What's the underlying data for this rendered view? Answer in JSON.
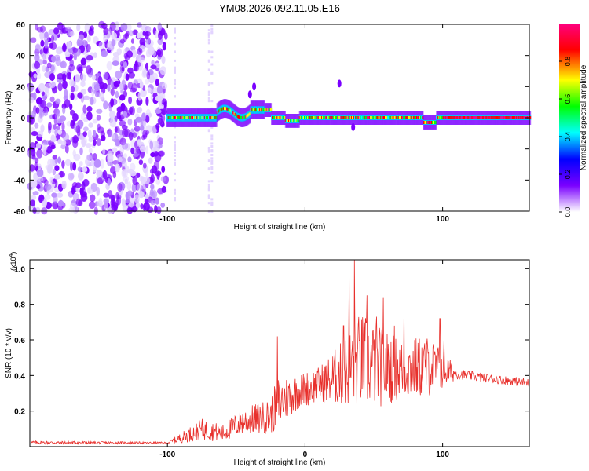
{
  "title": "YM08.2026.092.11.05.E16",
  "colors": {
    "snr_line": "#e8302c",
    "axis": "#000000",
    "colorbar_stops": [
      "#ffffff",
      "#7a00ff",
      "#0000ff",
      "#00ffff",
      "#00ff00",
      "#ffff00",
      "#ff0000",
      "#ff0080"
    ]
  },
  "chart_data": [
    {
      "type": "heatmap",
      "name": "spectrogram",
      "xlabel": "Height of straight line (km)",
      "ylabel": "Frequency (Hz)",
      "xlim": [
        -200,
        163
      ],
      "ylim": [
        -60,
        60
      ],
      "xticks": [
        -100,
        0,
        100
      ],
      "xtick_labels": [
        "-100",
        "",
        "100"
      ],
      "yticks": [
        -60,
        -40,
        -20,
        0,
        20,
        40,
        60
      ],
      "ytick_labels": [
        "-60",
        "-40",
        "-20",
        "0",
        "20",
        "40",
        "60"
      ],
      "colorbar": {
        "label": "Normalized spectral amplitude",
        "range": [
          0,
          1
        ],
        "ticks": [
          0.0,
          0.2,
          0.4,
          0.6,
          0.8
        ],
        "tick_labels": [
          "0.0",
          "0.2",
          "0.4",
          "0.6",
          "0.8"
        ]
      },
      "regions": [
        {
          "description": "broadband noise",
          "x": [
            -200,
            -101
          ],
          "freq": [
            -60,
            60
          ],
          "amplitude": 0.15
        },
        {
          "description": "narrow band near 0 Hz",
          "x": [
            -101,
            163
          ],
          "freq_center": 0,
          "freq_halfwidth": 4,
          "amplitude_peak": 0.95
        },
        {
          "description": "wiggle",
          "x": [
            -65,
            -40
          ],
          "freq_center": 5,
          "amplitude_peak": 0.4
        }
      ]
    },
    {
      "type": "line",
      "name": "snr",
      "xlabel": "Height of straight line (km)",
      "ylabel": "SNR (10 * v/v)",
      "multiplier_label": "(x10",
      "multiplier_exp": "4",
      "multiplier_close": ")",
      "xlim": [
        -200,
        163
      ],
      "ylim": [
        0,
        1.05
      ],
      "xticks": [
        -100,
        0,
        100
      ],
      "xtick_labels": [
        "-100",
        "0",
        "100"
      ],
      "yticks": [
        0.2,
        0.4,
        0.6,
        0.8,
        1.0
      ],
      "ytick_labels": [
        "0.2",
        "0.4",
        "0.6",
        "0.8",
        "1.0"
      ],
      "envelope": [
        {
          "x": -200,
          "base": 0.02,
          "amp": 0.02
        },
        {
          "x": -100,
          "base": 0.02,
          "amp": 0.01
        },
        {
          "x": -90,
          "base": 0.04,
          "amp": 0.06
        },
        {
          "x": -75,
          "base": 0.08,
          "amp": 0.12
        },
        {
          "x": -60,
          "base": 0.06,
          "amp": 0.1
        },
        {
          "x": -45,
          "base": 0.12,
          "amp": 0.15
        },
        {
          "x": -25,
          "base": 0.14,
          "amp": 0.2
        },
        {
          "x": -20,
          "base": 0.2,
          "amp": 0.3
        },
        {
          "x": -5,
          "base": 0.28,
          "amp": 0.2
        },
        {
          "x": 10,
          "base": 0.32,
          "amp": 0.2
        },
        {
          "x": 25,
          "base": 0.35,
          "amp": 0.35
        },
        {
          "x": 40,
          "base": 0.4,
          "amp": 0.55
        },
        {
          "x": 55,
          "base": 0.38,
          "amp": 0.45
        },
        {
          "x": 70,
          "base": 0.38,
          "amp": 0.35
        },
        {
          "x": 90,
          "base": 0.4,
          "amp": 0.35
        },
        {
          "x": 102,
          "base": 0.4,
          "amp": 0.2
        },
        {
          "x": 110,
          "base": 0.4,
          "amp": 0.06
        },
        {
          "x": 130,
          "base": 0.38,
          "amp": 0.05
        },
        {
          "x": 163,
          "base": 0.35,
          "amp": 0.05
        }
      ],
      "peaks": [
        {
          "x": -20,
          "y": 0.62
        },
        {
          "x": 28,
          "y": 0.68
        },
        {
          "x": 32,
          "y": 0.95
        },
        {
          "x": 36,
          "y": 1.05
        },
        {
          "x": 45,
          "y": 0.85
        },
        {
          "x": 52,
          "y": 0.73
        },
        {
          "x": 57,
          "y": 0.84
        },
        {
          "x": 65,
          "y": 0.68
        },
        {
          "x": 72,
          "y": 0.78
        },
        {
          "x": 98,
          "y": 0.72
        },
        {
          "x": 101,
          "y": 0.6
        }
      ]
    }
  ]
}
